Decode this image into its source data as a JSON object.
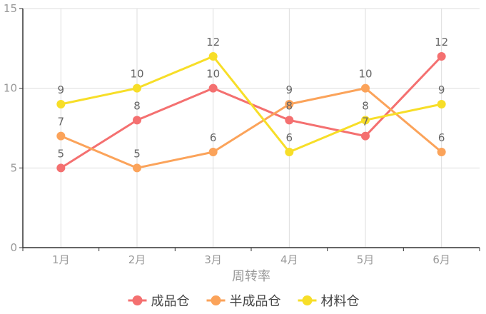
{
  "chart_data": {
    "type": "line",
    "title": "",
    "xlabel": "周转率",
    "ylabel": "",
    "categories": [
      "1月",
      "2月",
      "3月",
      "4月",
      "5月",
      "6月"
    ],
    "ylim": [
      0,
      15
    ],
    "yticks": [
      0,
      5,
      10,
      15
    ],
    "grid": true,
    "legend_position": "bottom",
    "series": [
      {
        "name": "成品仓",
        "color": "#f47070",
        "values": [
          5,
          8,
          10,
          8,
          7,
          12
        ]
      },
      {
        "name": "半成品仓",
        "color": "#fba35a",
        "values": [
          7,
          5,
          6,
          9,
          10,
          6
        ]
      },
      {
        "name": "材料仓",
        "color": "#f7de28",
        "values": [
          9,
          10,
          12,
          6,
          8,
          9
        ]
      }
    ]
  }
}
